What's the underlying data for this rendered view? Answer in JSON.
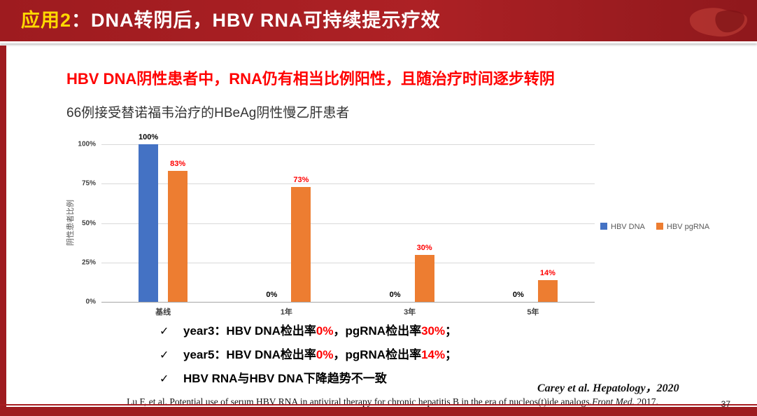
{
  "slide": {
    "header": {
      "title_highlight": "应用2",
      "title_rest": "：DNA转阴后，HBV RNA可持续提示疗效"
    },
    "headline": "HBV DNA阴性患者中，RNA仍有相当比例阳性，且随治疗时间逐步转阴",
    "subtitle": "66例接受替诺福韦治疗的HBeAg阴性慢乙肝患者",
    "page_number": "37"
  },
  "chart_data": {
    "type": "bar",
    "title": "",
    "categories": [
      "基线",
      "1年",
      "3年",
      "5年"
    ],
    "series": [
      {
        "name": "HBV DNA",
        "color": "#4472C4",
        "values": [
          100,
          0,
          0,
          0
        ],
        "labels": [
          "100%",
          "0%",
          "0%",
          "0%"
        ],
        "label_color": "#000000"
      },
      {
        "name": "HBV pgRNA",
        "color": "#ED7D31",
        "values": [
          83,
          73,
          30,
          14
        ],
        "labels": [
          "83%",
          "73%",
          "30%",
          "14%"
        ],
        "label_color": "#FF0000"
      }
    ],
    "xlabel": "",
    "ylabel": "阴性患者比例",
    "yticks": [
      "0%",
      "25%",
      "50%",
      "75%",
      "100%"
    ],
    "ylim": [
      0,
      100
    ],
    "grid": true,
    "legend_position": "right"
  },
  "bullet_marker": "✓",
  "bullets": [
    {
      "segments": [
        {
          "text": "year3：HBV DNA检出率",
          "color": "#000000"
        },
        {
          "text": "0%",
          "color": "#FF0000"
        },
        {
          "text": "，pgRNA检出率",
          "color": "#000000"
        },
        {
          "text": "30%",
          "color": "#FF0000"
        },
        {
          "text": "；",
          "color": "#000000"
        }
      ]
    },
    {
      "segments": [
        {
          "text": "year5：HBV DNA检出率",
          "color": "#000000"
        },
        {
          "text": "0%",
          "color": "#FF0000"
        },
        {
          "text": "，pgRNA检出率",
          "color": "#000000"
        },
        {
          "text": "14%",
          "color": "#FF0000"
        },
        {
          "text": "；",
          "color": "#000000"
        }
      ]
    },
    {
      "segments": [
        {
          "text": "HBV RNA与HBV DNA下降趋势不一致",
          "color": "#000000"
        }
      ]
    }
  ],
  "citations": {
    "primary": "Carey et al.  Hepatology，2020",
    "reference_segments": [
      {
        "text": "Lu F, et al. Potential use of serum HBV RNA in antiviral therapy for chronic hepatitis B in the era of nucleos(t)ide analogs.",
        "italic": false
      },
      {
        "text": "Front Med.",
        "italic": true
      },
      {
        "text": " 2017.",
        "italic": false
      }
    ]
  },
  "colors": {
    "banner_red": "#9E1B1F",
    "accent_yellow": "#FFD800",
    "headline_red": "#FF0000",
    "bar_blue": "#4472C4",
    "bar_orange": "#ED7D31"
  }
}
